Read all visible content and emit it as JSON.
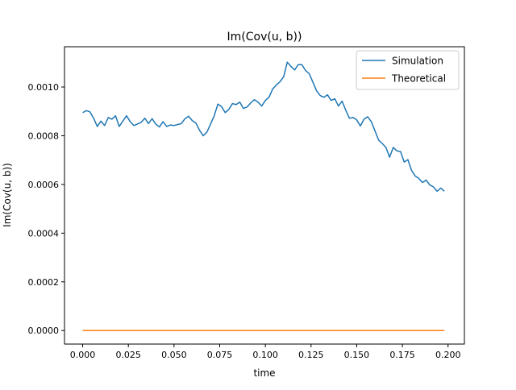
{
  "chart_data": {
    "type": "line",
    "title": "Im(Cov(u, b))",
    "xlabel": "time",
    "ylabel": "Im(Cov(u, b))",
    "xlim": [
      -0.00995,
      0.20895
    ],
    "ylim": [
      -5.55e-05,
      0.0011655
    ],
    "xticks": [
      0.0,
      0.025,
      0.05,
      0.075,
      0.1,
      0.125,
      0.15,
      0.175,
      0.2
    ],
    "xtick_labels": [
      "0.000",
      "0.025",
      "0.050",
      "0.075",
      "0.100",
      "0.125",
      "0.150",
      "0.175",
      "0.200"
    ],
    "yticks": [
      0.0,
      0.0002,
      0.0004,
      0.0006,
      0.0008,
      0.001
    ],
    "ytick_labels": [
      "0.0000",
      "0.0002",
      "0.0004",
      "0.0006",
      "0.0008",
      "0.0010"
    ],
    "grid": false,
    "legend_position": "top-right",
    "series": [
      {
        "name": "Simulation",
        "color": "#1f77b4",
        "x": [
          0.0,
          0.002,
          0.004,
          0.006,
          0.008,
          0.01,
          0.012,
          0.014,
          0.016,
          0.018,
          0.02,
          0.022,
          0.024,
          0.026,
          0.028,
          0.03,
          0.032,
          0.034,
          0.036,
          0.038,
          0.04,
          0.042,
          0.044,
          0.046,
          0.048,
          0.05,
          0.052,
          0.054,
          0.056,
          0.058,
          0.06,
          0.062,
          0.064,
          0.066,
          0.068,
          0.07,
          0.072,
          0.074,
          0.076,
          0.078,
          0.08,
          0.082,
          0.084,
          0.086,
          0.088,
          0.09,
          0.092,
          0.094,
          0.096,
          0.098,
          0.1,
          0.102,
          0.104,
          0.106,
          0.108,
          0.11,
          0.112,
          0.114,
          0.116,
          0.118,
          0.12,
          0.122,
          0.124,
          0.126,
          0.128,
          0.13,
          0.132,
          0.134,
          0.136,
          0.138,
          0.14,
          0.142,
          0.144,
          0.146,
          0.148,
          0.15,
          0.152,
          0.154,
          0.156,
          0.158,
          0.16,
          0.162,
          0.164,
          0.166,
          0.168,
          0.17,
          0.172,
          0.174,
          0.176,
          0.178,
          0.18,
          0.182,
          0.184,
          0.186,
          0.188,
          0.19,
          0.192,
          0.194,
          0.196,
          0.198
        ],
        "y": [
          0.000895,
          0.000903,
          0.000898,
          0.000872,
          0.000838,
          0.00086,
          0.000842,
          0.000875,
          0.000868,
          0.000882,
          0.000838,
          0.00086,
          0.000882,
          0.000858,
          0.000842,
          0.000848,
          0.000855,
          0.000872,
          0.00085,
          0.00087,
          0.000848,
          0.000836,
          0.000858,
          0.000838,
          0.000844,
          0.000842,
          0.000846,
          0.00085,
          0.00087,
          0.00088,
          0.000862,
          0.000852,
          0.000822,
          0.0008,
          0.000815,
          0.000848,
          0.000882,
          0.00093,
          0.00092,
          0.000895,
          0.000908,
          0.000932,
          0.000928,
          0.000938,
          0.000912,
          0.000918,
          0.000935,
          0.000948,
          0.000938,
          0.000922,
          0.000945,
          0.000958,
          0.000992,
          0.001008,
          0.001022,
          0.001042,
          0.001102,
          0.001085,
          0.00107,
          0.001092,
          0.001092,
          0.001068,
          0.001055,
          0.00102,
          0.000985,
          0.000965,
          0.000958,
          0.000968,
          0.000945,
          0.000952,
          0.000922,
          0.000942,
          0.000905,
          0.000872,
          0.000875,
          0.000865,
          0.00084,
          0.000868,
          0.000878,
          0.000858,
          0.00082,
          0.000782,
          0.000768,
          0.000752,
          0.000712,
          0.000752,
          0.000738,
          0.000735,
          0.000692,
          0.000702,
          0.000658,
          0.000635,
          0.000625,
          0.000608,
          0.000618,
          0.000598,
          0.00059,
          0.000572,
          0.000585,
          0.000572
        ]
      },
      {
        "name": "Theoretical",
        "color": "#ff7f0e",
        "x": [
          0.0,
          0.198
        ],
        "y": [
          0.0,
          0.0
        ]
      }
    ]
  }
}
